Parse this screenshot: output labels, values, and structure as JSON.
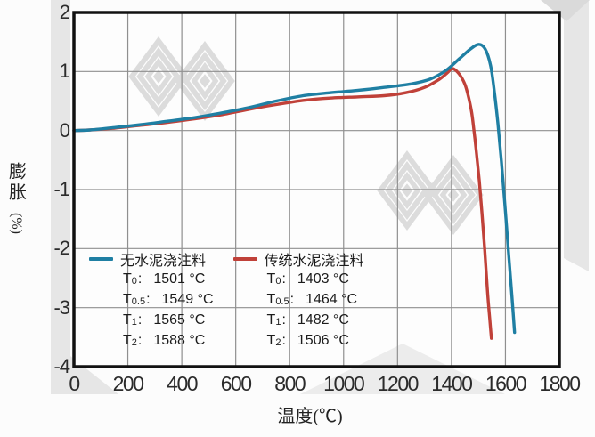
{
  "chart_data": {
    "type": "line",
    "title": "",
    "xlabel": "温度(℃)",
    "ylabel": "膨胀",
    "ylabel_unit": "(%)",
    "xlim": [
      0,
      1800
    ],
    "ylim": [
      -4,
      2
    ],
    "xticks": [
      0,
      200,
      400,
      600,
      800,
      1000,
      1200,
      1400,
      1600,
      1800
    ],
    "yticks": [
      2,
      1,
      0,
      -1,
      -2,
      -3,
      -4
    ],
    "grid": true,
    "legend_position": "inside-bottom-left",
    "series": [
      {
        "name": "传统水泥浇注料",
        "color": "#c04139",
        "points": [
          [
            0,
            0
          ],
          [
            60,
            0.01
          ],
          [
            150,
            0.04
          ],
          [
            250,
            0.09
          ],
          [
            350,
            0.14
          ],
          [
            450,
            0.2
          ],
          [
            550,
            0.27
          ],
          [
            650,
            0.36
          ],
          [
            750,
            0.44
          ],
          [
            850,
            0.51
          ],
          [
            950,
            0.55
          ],
          [
            1050,
            0.57
          ],
          [
            1150,
            0.59
          ],
          [
            1230,
            0.64
          ],
          [
            1300,
            0.73
          ],
          [
            1355,
            0.87
          ],
          [
            1385,
            0.98
          ],
          [
            1403,
            1.05
          ],
          [
            1428,
            0.96
          ],
          [
            1450,
            0.78
          ],
          [
            1464,
            0.55
          ],
          [
            1475,
            0.3
          ],
          [
            1482,
            0.05
          ],
          [
            1492,
            -0.35
          ],
          [
            1503,
            -0.85
          ],
          [
            1513,
            -1.4
          ],
          [
            1523,
            -2.0
          ],
          [
            1533,
            -2.7
          ],
          [
            1542,
            -3.2
          ],
          [
            1548,
            -3.52
          ]
        ]
      },
      {
        "name": "无水泥浇注料",
        "color": "#1f7fa3",
        "points": [
          [
            0,
            0
          ],
          [
            60,
            0.01
          ],
          [
            150,
            0.05
          ],
          [
            250,
            0.1
          ],
          [
            350,
            0.16
          ],
          [
            450,
            0.22
          ],
          [
            550,
            0.3
          ],
          [
            650,
            0.39
          ],
          [
            750,
            0.5
          ],
          [
            850,
            0.59
          ],
          [
            950,
            0.64
          ],
          [
            1050,
            0.68
          ],
          [
            1150,
            0.73
          ],
          [
            1250,
            0.79
          ],
          [
            1320,
            0.87
          ],
          [
            1380,
            1.02
          ],
          [
            1430,
            1.22
          ],
          [
            1470,
            1.38
          ],
          [
            1501,
            1.46
          ],
          [
            1525,
            1.38
          ],
          [
            1545,
            1.1
          ],
          [
            1560,
            0.62
          ],
          [
            1572,
            0.12
          ],
          [
            1585,
            -0.52
          ],
          [
            1598,
            -1.25
          ],
          [
            1612,
            -2.1
          ],
          [
            1624,
            -2.8
          ],
          [
            1634,
            -3.42
          ]
        ]
      }
    ]
  },
  "legend": {
    "t_base": "T",
    "colon": ":",
    "entries": [
      {
        "label": "无水泥浇注料",
        "color": "#1f7fa3",
        "rows": [
          {
            "sub": "0",
            "value": "1501 °C"
          },
          {
            "sub": "0.5",
            "value": "1549 °C"
          },
          {
            "sub": "1",
            "value": "1565 °C"
          },
          {
            "sub": "2",
            "value": "1588 °C"
          }
        ]
      },
      {
        "label": "传统水泥浇注料",
        "color": "#c04139",
        "rows": [
          {
            "sub": "0",
            "value": "1403 °C"
          },
          {
            "sub": "0.5",
            "value": "1464 °C"
          },
          {
            "sub": "1",
            "value": "1482 °C"
          },
          {
            "sub": "2",
            "value": "1506 °C"
          }
        ]
      }
    ]
  },
  "colors": {
    "grid": "#8f8f8f",
    "border": "#111111",
    "plot_bg": "#fdfdfd",
    "watermark": "#dcdcdc",
    "bg_shapes": "#e6e6e6"
  }
}
